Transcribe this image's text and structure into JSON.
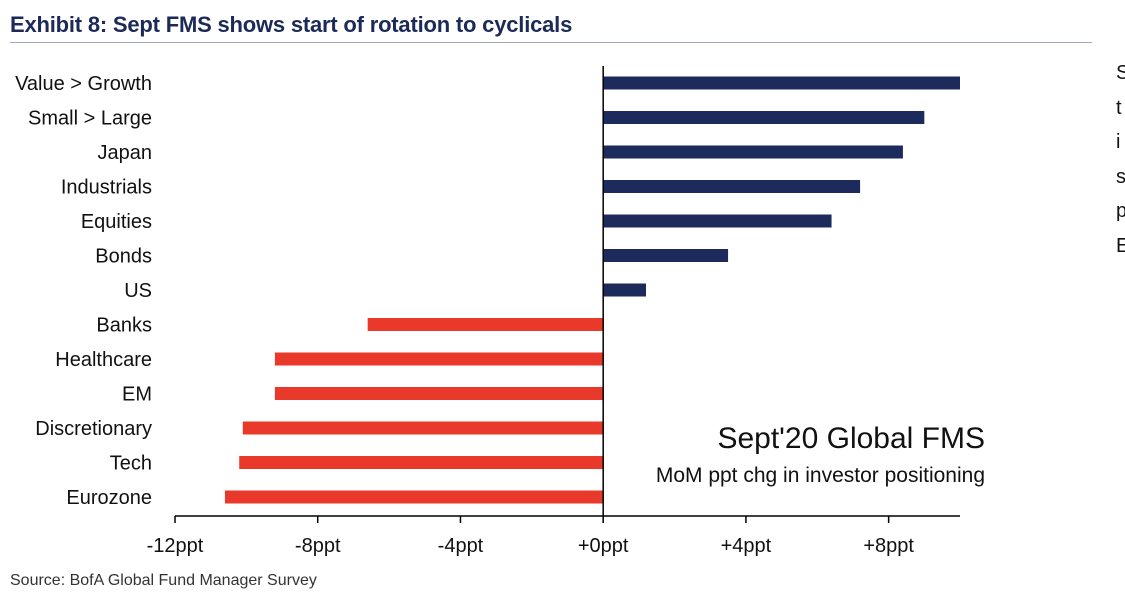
{
  "title": "Exhibit 8: Sept FMS shows start of rotation to cyclicals",
  "source": "Source: BofA Global Fund Manager Survey",
  "cut_off_text": [
    "S",
    "t",
    "i",
    "s",
    "p",
    "E"
  ],
  "chart_data": {
    "type": "bar",
    "orientation": "horizontal",
    "categories": [
      "Value > Growth",
      "Small > Large",
      "Japan",
      "Industrials",
      "Equities",
      "Bonds",
      "US",
      "Banks",
      "Healthcare",
      "EM",
      "Discretionary",
      "Tech",
      "Eurozone"
    ],
    "values": [
      10,
      9,
      8.4,
      7.2,
      6.4,
      3.5,
      1.2,
      -6.6,
      -9.2,
      -9.2,
      -10.1,
      -10.2,
      -10.6
    ],
    "xlim": [
      -12,
      10
    ],
    "xticks": [
      {
        "value": -12,
        "label": "-12ppt"
      },
      {
        "value": -8,
        "label": "-8ppt"
      },
      {
        "value": -4,
        "label": "-4ppt"
      },
      {
        "value": 0,
        "label": "+0ppt"
      },
      {
        "value": 4,
        "label": "+4ppt"
      },
      {
        "value": 8,
        "label": "+8ppt"
      }
    ],
    "annotation_title": "Sept'20 Global FMS",
    "annotation_subtitle": "MoM ppt chg in investor positioning",
    "positive_color": "#1c2a5c",
    "negative_color": "#e8392a",
    "grid": false,
    "legend": "none"
  }
}
